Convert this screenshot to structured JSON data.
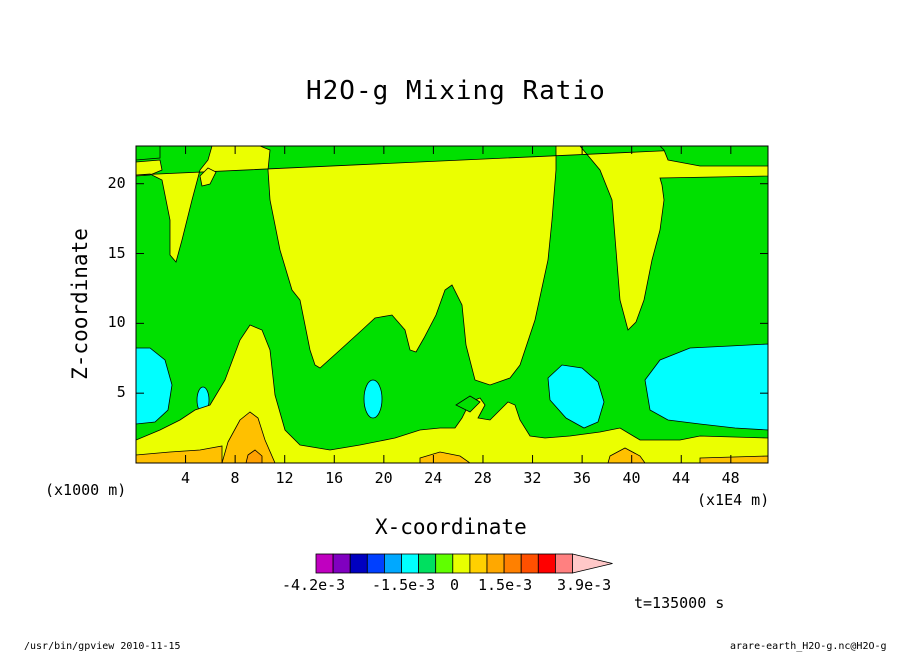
{
  "chart_data": {
    "type": "heatmap",
    "title": "H2O-g Mixing Ratio",
    "xlabel": "X-coordinate",
    "ylabel": "Z-coordinate",
    "x_unit": "(x1000 m)",
    "x_unit2": "(x1E4 m)",
    "x_ticks": [
      "4",
      "8",
      "12",
      "16",
      "20",
      "24",
      "28",
      "32",
      "36",
      "40",
      "44",
      "48"
    ],
    "y_ticks": [
      "5",
      "10",
      "15",
      "20"
    ],
    "xlim": [
      0,
      51
    ],
    "ylim": [
      0,
      22.7
    ],
    "colorbar": {
      "colors": [
        "#c000c0",
        "#8000c0",
        "#0000c0",
        "#0040ff",
        "#00a8ff",
        "#00ffff",
        "#00e060",
        "#60ff00",
        "#e8ff00",
        "#ffd000",
        "#ffa800",
        "#ff8000",
        "#ff5000",
        "#ff0000",
        "#ff8080",
        "#ffc8c8"
      ],
      "labels": [
        "-4.2e-3",
        "-1.5e-3",
        "0",
        "1.5e-3",
        "3.9e-3"
      ]
    },
    "time_label": "t=135000 s",
    "fill_colors": {
      "cyan": "#00ffff",
      "green": "#00e000",
      "yellow": "#ebff00",
      "orange": "#ffc000",
      "dark_orange": "#ffa000"
    }
  },
  "footer": {
    "left": "/usr/bin/gpview  2010-11-15",
    "right": "arare-earth_H2O-g.nc@H2O-g"
  }
}
